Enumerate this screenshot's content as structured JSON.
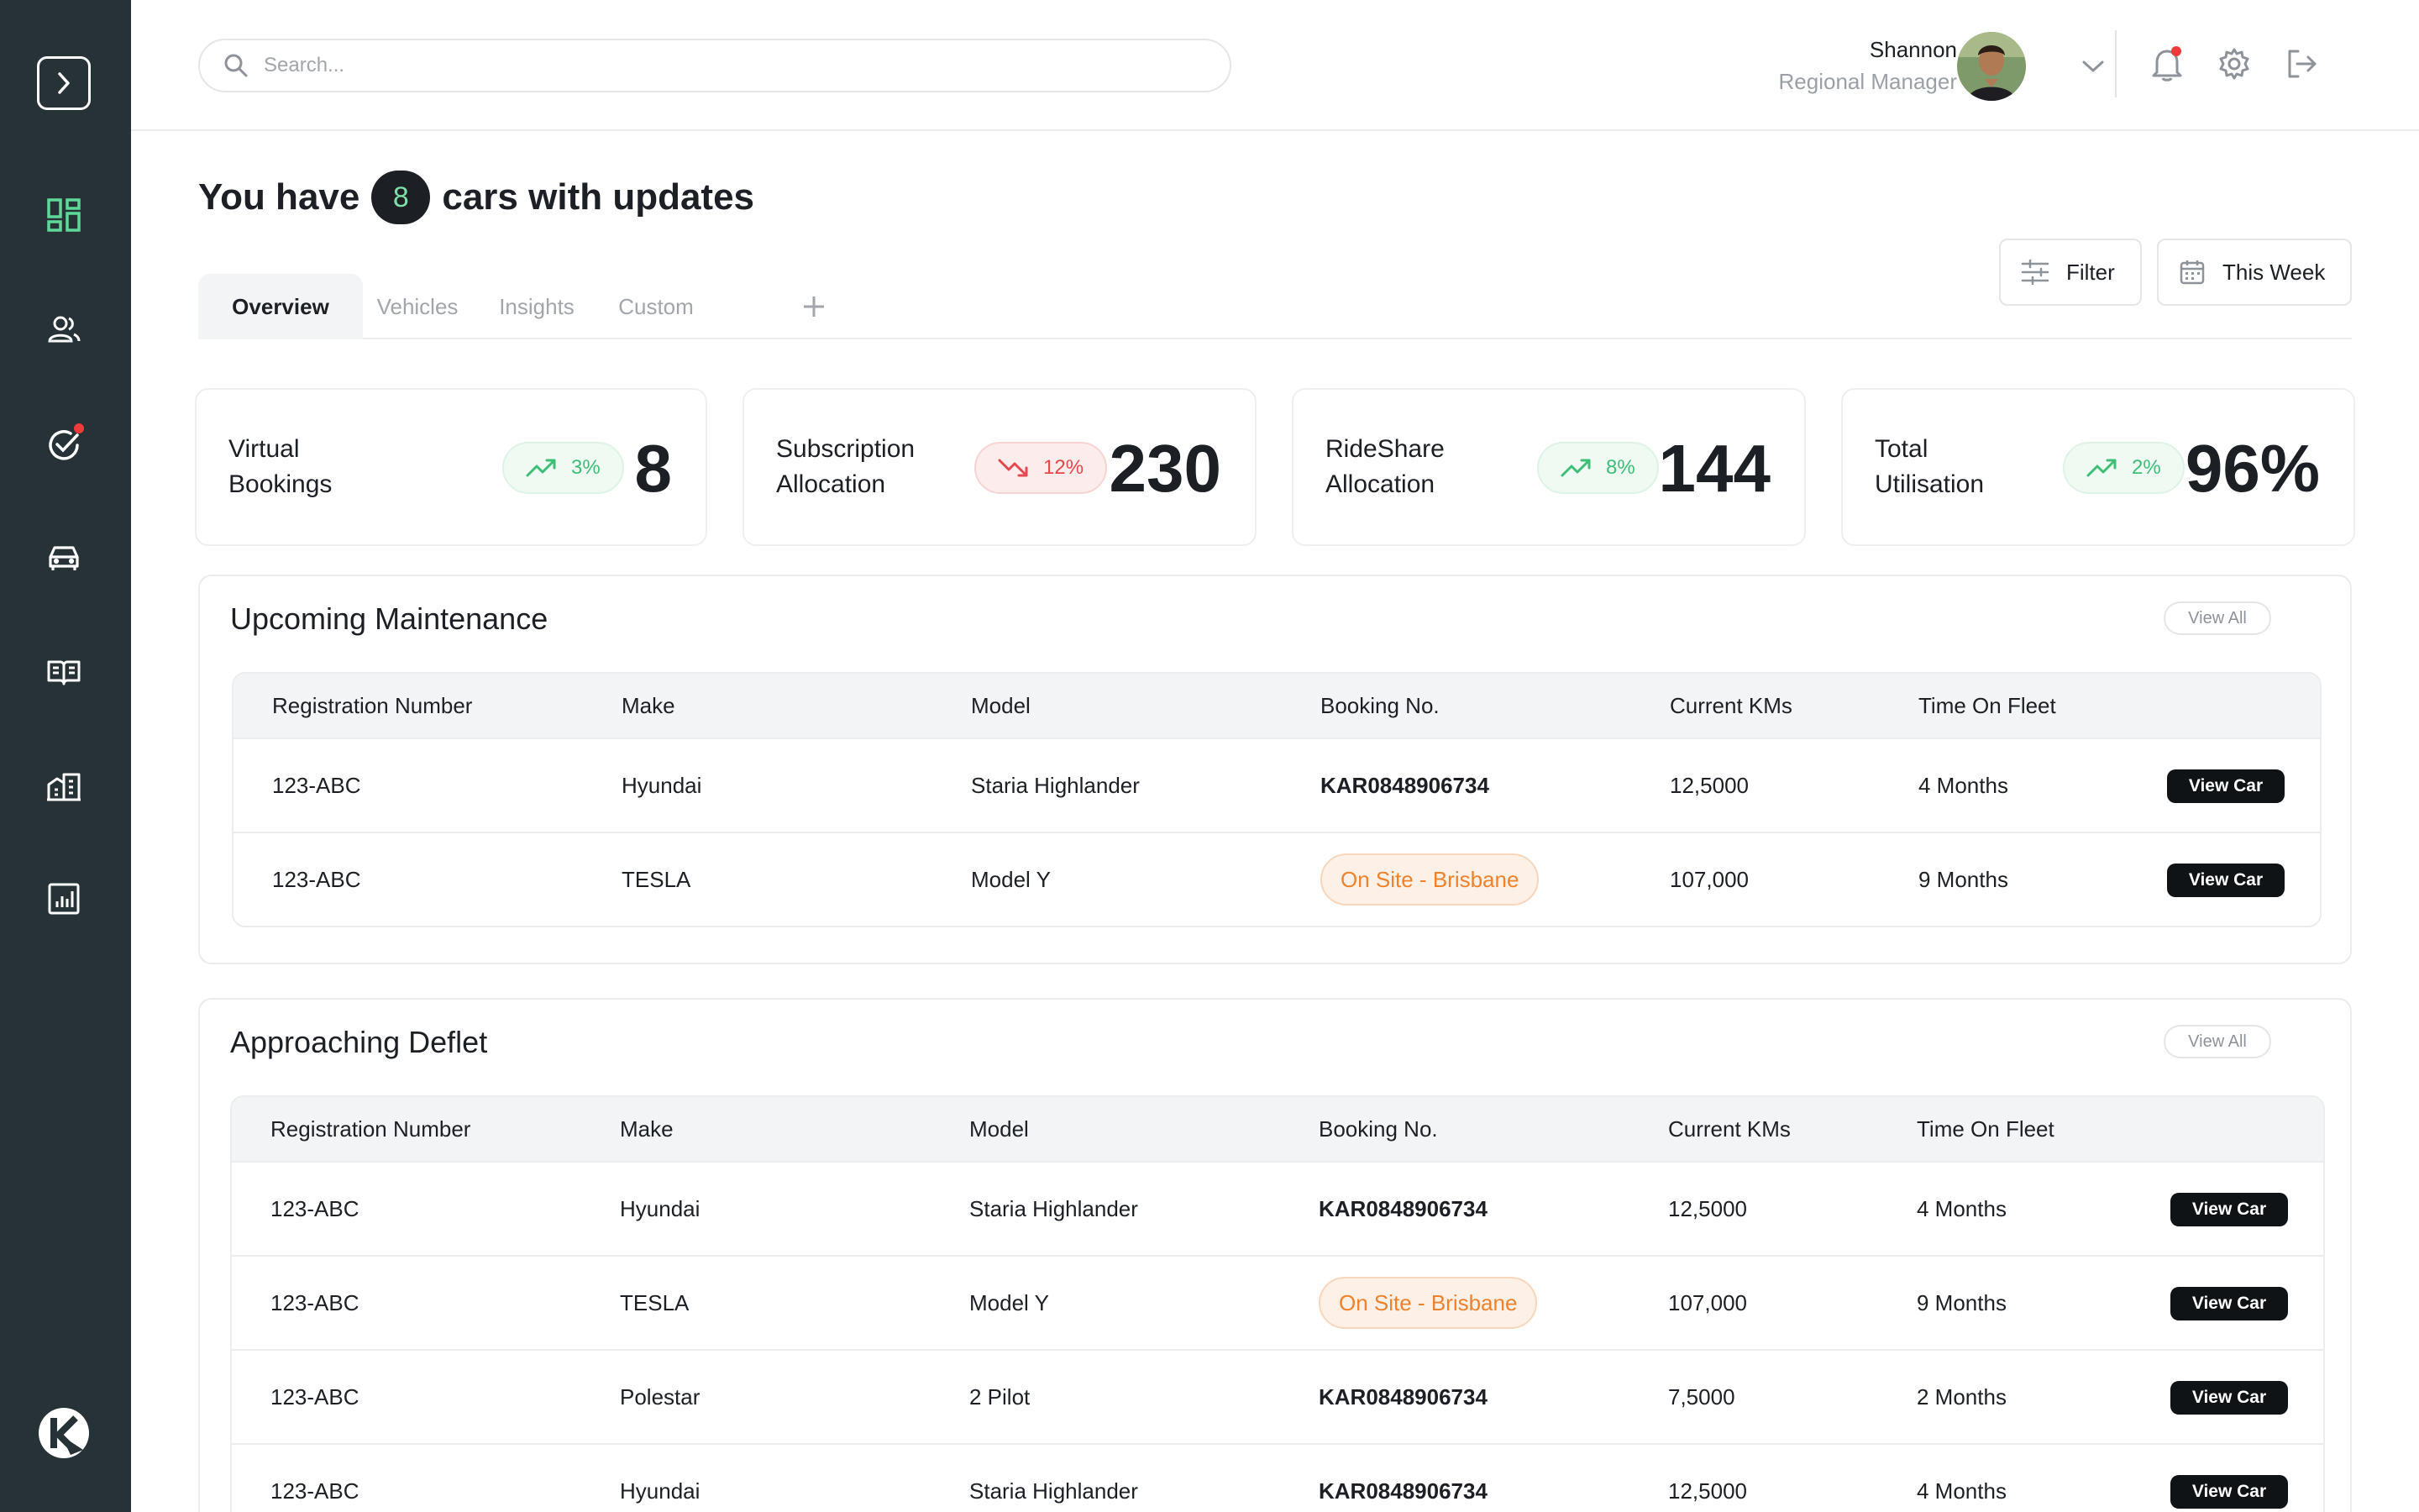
{
  "search": {
    "placeholder": "Search..."
  },
  "user": {
    "name": "Shannon",
    "role": "Regional Manager"
  },
  "title": {
    "prefix": "You have",
    "count": "8",
    "suffix": "cars with updates"
  },
  "tabs": [
    {
      "label": "Overview",
      "active": true
    },
    {
      "label": "Vehicles"
    },
    {
      "label": "Insights"
    },
    {
      "label": "Custom"
    }
  ],
  "toolbar": {
    "filter_label": "Filter",
    "date_label": "This Week"
  },
  "stats": [
    {
      "label": "Virtual Bookings",
      "change": "3%",
      "trend": "up",
      "value": "8"
    },
    {
      "label": "Subscription Allocation",
      "change": "12%",
      "trend": "down",
      "value": "230"
    },
    {
      "label": "RideShare Allocation",
      "change": "8%",
      "trend": "up",
      "value": "144"
    },
    {
      "label": "Total Utilisation",
      "change": "2%",
      "trend": "up",
      "value": "96%"
    }
  ],
  "columns": [
    "Registration Number",
    "Make",
    "Model",
    "Booking No.",
    "Current KMs",
    "Time On Fleet"
  ],
  "view_car_label": "View Car",
  "maintenance": {
    "title": "Upcoming Maintenance",
    "view_all": "View All",
    "rows": [
      {
        "reg": "123-ABC",
        "make": "Hyundai",
        "model": "Staria Highlander",
        "booking": "KAR0848906734",
        "kms": "12,5000",
        "time": "4 Months"
      },
      {
        "reg": "123-ABC",
        "make": "TESLA",
        "model": "Model Y",
        "status": "On Site - Brisbane",
        "kms": "107,000",
        "time": "9 Months"
      }
    ]
  },
  "deflet": {
    "title": "Approaching Deflet",
    "view_all": "View All",
    "rows": [
      {
        "reg": "123-ABC",
        "make": "Hyundai",
        "model": "Staria Highlander",
        "booking": "KAR0848906734",
        "kms": "12,5000",
        "time": "4 Months"
      },
      {
        "reg": "123-ABC",
        "make": "TESLA",
        "model": "Model Y",
        "status": "On Site - Brisbane",
        "kms": "107,000",
        "time": "9 Months"
      },
      {
        "reg": "123-ABC",
        "make": "Polestar",
        "model": "2 Pilot",
        "booking": "KAR0848906734",
        "kms": "7,5000",
        "time": "2 Months"
      },
      {
        "reg": "123-ABC",
        "make": "Hyundai",
        "model": "Staria Highlander",
        "booking": "KAR0848906734",
        "kms": "12,5000",
        "time": "4 Months"
      }
    ]
  },
  "colors": {
    "sidebar": "#273236",
    "accent_green": "#5fd99a",
    "up": "#3fbe78",
    "down": "#e8484b",
    "status_orange": "#f0822c"
  },
  "icons": {
    "sidebar": [
      "dashboard-icon",
      "users-icon",
      "tasks-icon",
      "car-icon",
      "book-icon",
      "buildings-icon",
      "reports-icon"
    ],
    "header": [
      "search-icon",
      "chevron-down-icon",
      "bell-icon",
      "gear-icon",
      "logout-icon"
    ]
  }
}
